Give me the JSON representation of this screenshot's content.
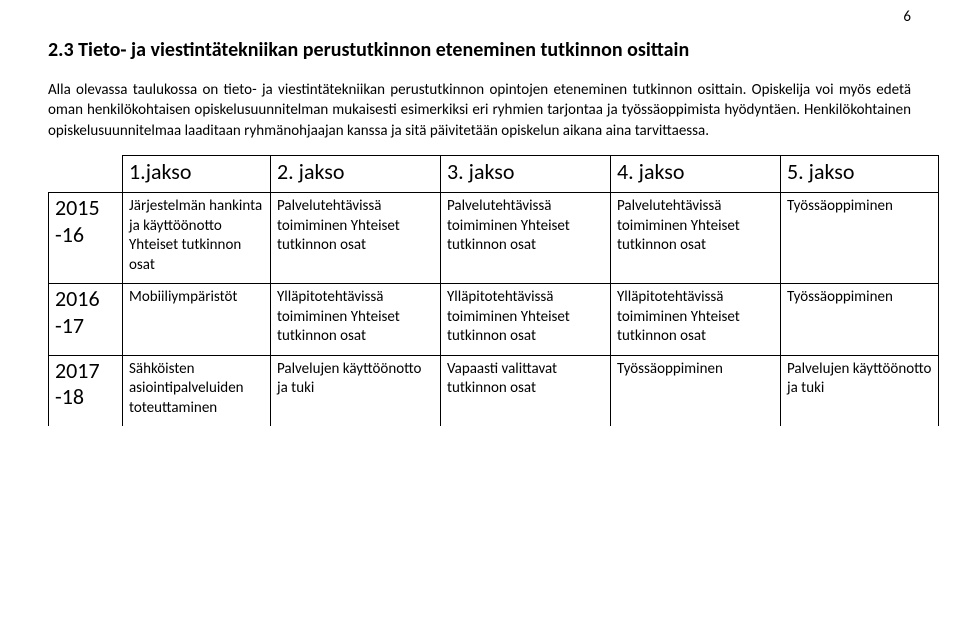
{
  "page_number": "6",
  "heading": "2.3 Tieto- ja viestintätekniikan perustutkinnon eteneminen tutkinnon osittain",
  "paragraph": "Alla olevassa taulukossa on tieto- ja viestintätekniikan perustutkinnon opintojen eteneminen tutkinnon osittain. Opiskelija voi myös edetä oman henkilökohtaisen opiskelusuunnitelman mukaisesti esimerkiksi eri ryhmien tarjontaa ja työssäoppimista hyödyntäen. Henkilökohtainen opiskelusuunnitelmaa laaditaan ryhmänohjaajan kanssa ja sitä päivitetään opiskelun aikana aina tarvittaessa.",
  "table": {
    "headers": [
      "1.jakso",
      "2. jakso",
      "3. jakso",
      "4. jakso",
      "5. jakso"
    ],
    "rows": [
      {
        "year": "2015 -16",
        "c1": "Järjestelmän hankinta ja käyttöönotto Yhteiset tutkinnon osat",
        "c2": "Palvelutehtävissä toimiminen Yhteiset tutkinnon osat",
        "c3": "Palvelutehtävissä toimiminen Yhteiset tutkinnon osat",
        "c4": "Palvelutehtävissä toimiminen Yhteiset tutkinnon osat",
        "c5": "Työssäoppiminen"
      },
      {
        "year": "2016 -17",
        "c1": "Mobiiliympäristöt",
        "c2": "Ylläpitotehtävissä toimiminen Yhteiset tutkinnon osat",
        "c3": "Ylläpitotehtävissä toimiminen Yhteiset tutkinnon osat",
        "c4": "Ylläpitotehtävissä toimiminen Yhteiset tutkinnon osat",
        "c5": "Työssäoppiminen"
      },
      {
        "year": "2017 -18",
        "c1": "Sähköisten asiointipalveluiden toteuttaminen",
        "c2": "Palvelujen käyttöönotto ja tuki",
        "c3": "Vapaasti valittavat tutkinnon osat",
        "c4": "Työssäoppiminen",
        "c5": "Palvelujen käyttöönotto ja tuki"
      }
    ]
  },
  "style": {
    "background_color": "#ffffff",
    "text_color": "#000000",
    "border_color": "#000000",
    "heading_fontsize_pt": 15,
    "body_fontsize_pt": 11,
    "header_cell_fontsize_pt": 16,
    "year_cell_fontsize_pt": 16,
    "data_cell_fontsize_pt": 11
  }
}
